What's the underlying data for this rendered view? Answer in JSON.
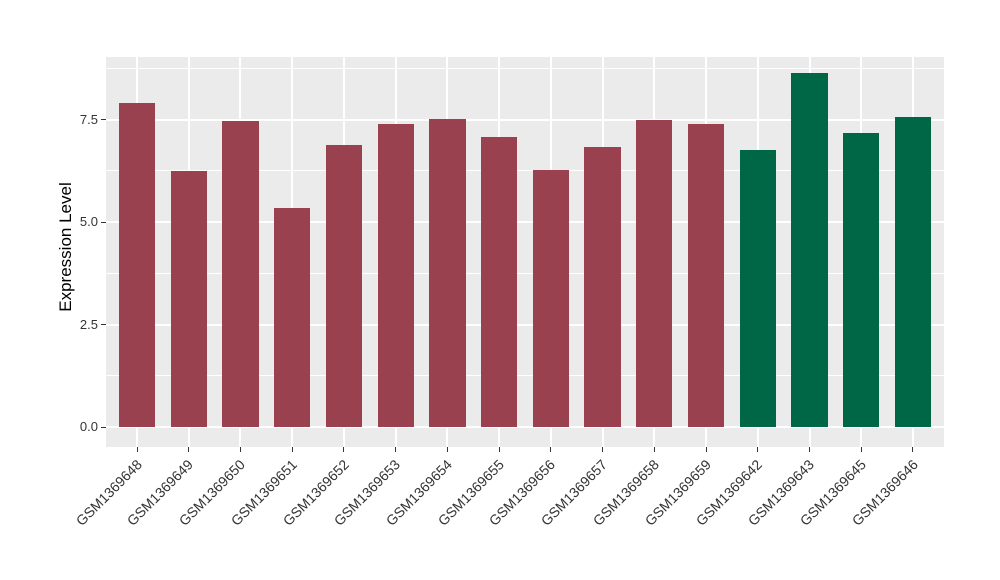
{
  "chart_data": {
    "type": "bar",
    "title": "",
    "xlabel": "",
    "ylabel": "Expression Level",
    "categories": [
      "GSM1369648",
      "GSM1369649",
      "GSM1369650",
      "GSM1369651",
      "GSM1369652",
      "GSM1369653",
      "GSM1369654",
      "GSM1369655",
      "GSM1369656",
      "GSM1369657",
      "GSM1369658",
      "GSM1369659",
      "GSM1369642",
      "GSM1369643",
      "GSM1369645",
      "GSM1369646"
    ],
    "values": [
      7.91,
      6.25,
      7.47,
      5.35,
      6.88,
      7.4,
      7.52,
      7.07,
      6.27,
      6.83,
      7.48,
      7.38,
      6.76,
      8.63,
      7.18,
      7.55
    ],
    "bar_colors": [
      "#9A4150",
      "#9A4150",
      "#9A4150",
      "#9A4150",
      "#9A4150",
      "#9A4150",
      "#9A4150",
      "#9A4150",
      "#9A4150",
      "#9A4150",
      "#9A4150",
      "#9A4150",
      "#006746",
      "#006746",
      "#006746",
      "#006746"
    ],
    "yticks": {
      "labels": [
        "0.0",
        "2.5",
        "5.0",
        "7.5"
      ],
      "values": [
        0,
        2.5,
        5,
        7.5
      ]
    },
    "minor_ticks": [
      1.25,
      3.75,
      6.25,
      8.75
    ],
    "ylim": [
      -0.45,
      9.05
    ],
    "grid": "major-and-minor",
    "legend": "none",
    "panel_background": "#EBEBEB",
    "gridline_color": "#FFFFFF",
    "axis_text_color": "#333333"
  }
}
